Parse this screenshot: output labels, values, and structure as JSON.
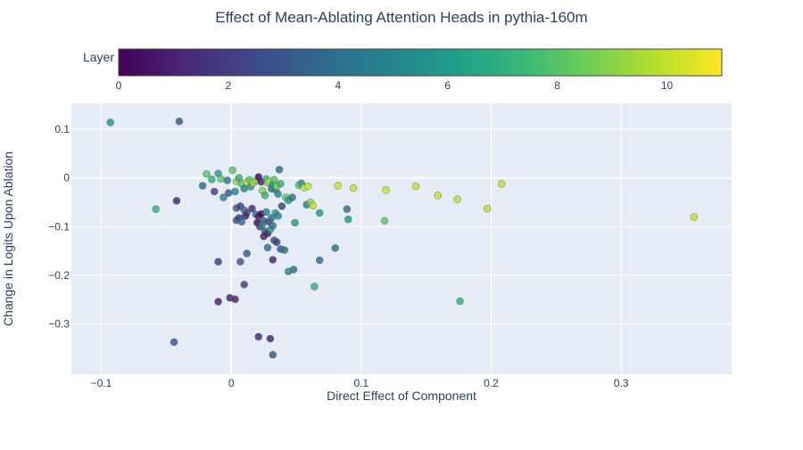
{
  "chart_data": {
    "type": "scatter",
    "title": "Effect of Mean-Ablating Attention Heads in pythia-160m",
    "xlabel": "Direct Effect of Component",
    "ylabel": "Change in Logits Upon Ablation",
    "xlim": [
      -0.123,
      0.385
    ],
    "ylim": [
      -0.403,
      0.153
    ],
    "xticks": [
      -0.1,
      0,
      0.1,
      0.2,
      0.3
    ],
    "xtick_labels": [
      "−0.1",
      "0",
      "0.1",
      "0.2",
      "0.3"
    ],
    "yticks": [
      0.1,
      0,
      -0.1,
      -0.2,
      -0.3
    ],
    "ytick_labels": [
      "0.1",
      "0",
      "−0.1",
      "−0.2",
      "−0.3"
    ],
    "grid": true,
    "colorbar": {
      "title": "Layer",
      "min": 0,
      "max": 11,
      "ticks": [
        0,
        2,
        4,
        6,
        8,
        10
      ],
      "colorscale": "Viridis",
      "placement": "top-horizontal"
    },
    "points": [
      {
        "x": -0.093,
        "y": 0.114,
        "layer": 6
      },
      {
        "x": -0.04,
        "y": 0.116,
        "layer": 3
      },
      {
        "x": -0.022,
        "y": -0.016,
        "layer": 4
      },
      {
        "x": -0.019,
        "y": 0.008,
        "layer": 8
      },
      {
        "x": -0.015,
        "y": -0.003,
        "layer": 7
      },
      {
        "x": -0.013,
        "y": -0.028,
        "layer": 2
      },
      {
        "x": -0.01,
        "y": 0.009,
        "layer": 6
      },
      {
        "x": -0.008,
        "y": -0.002,
        "layer": 8
      },
      {
        "x": -0.006,
        "y": -0.04,
        "layer": 5
      },
      {
        "x": -0.003,
        "y": -0.005,
        "layer": 4
      },
      {
        "x": -0.002,
        "y": -0.031,
        "layer": 3
      },
      {
        "x": 0.001,
        "y": 0.016,
        "layer": 8
      },
      {
        "x": 0.003,
        "y": -0.028,
        "layer": 5
      },
      {
        "x": 0.004,
        "y": -0.007,
        "layer": 9
      },
      {
        "x": 0.006,
        "y": 0.0,
        "layer": 7
      },
      {
        "x": 0.008,
        "y": -0.012,
        "layer": 8
      },
      {
        "x": 0.01,
        "y": -0.022,
        "layer": 5
      },
      {
        "x": 0.012,
        "y": -0.008,
        "layer": 10
      },
      {
        "x": 0.014,
        "y": -0.004,
        "layer": 8
      },
      {
        "x": 0.015,
        "y": -0.018,
        "layer": 6
      },
      {
        "x": 0.017,
        "y": -0.01,
        "layer": 10
      },
      {
        "x": 0.019,
        "y": -0.006,
        "layer": 9
      },
      {
        "x": 0.021,
        "y": 0.002,
        "layer": 0
      },
      {
        "x": 0.023,
        "y": -0.008,
        "layer": 1
      },
      {
        "x": 0.024,
        "y": -0.026,
        "layer": 9
      },
      {
        "x": 0.026,
        "y": -0.036,
        "layer": 7
      },
      {
        "x": 0.027,
        "y": -0.002,
        "layer": 7
      },
      {
        "x": 0.028,
        "y": -0.01,
        "layer": 9
      },
      {
        "x": 0.03,
        "y": -0.008,
        "layer": 10
      },
      {
        "x": 0.031,
        "y": -0.022,
        "layer": 4
      },
      {
        "x": 0.032,
        "y": -0.013,
        "layer": 6
      },
      {
        "x": 0.033,
        "y": -0.004,
        "layer": 8
      },
      {
        "x": 0.034,
        "y": -0.024,
        "layer": 5
      },
      {
        "x": 0.035,
        "y": -0.017,
        "layer": 9
      },
      {
        "x": 0.036,
        "y": -0.033,
        "layer": 5
      },
      {
        "x": 0.037,
        "y": 0.017,
        "layer": 4
      },
      {
        "x": 0.038,
        "y": -0.012,
        "layer": 7
      },
      {
        "x": 0.039,
        "y": -0.058,
        "layer": 2
      },
      {
        "x": 0.042,
        "y": -0.04,
        "layer": 8
      },
      {
        "x": 0.044,
        "y": -0.046,
        "layer": 6
      },
      {
        "x": 0.047,
        "y": -0.04,
        "layer": 4
      },
      {
        "x": 0.052,
        "y": -0.015,
        "layer": 8
      },
      {
        "x": 0.054,
        "y": -0.011,
        "layer": 6
      },
      {
        "x": 0.056,
        "y": -0.02,
        "layer": 10
      },
      {
        "x": 0.058,
        "y": -0.055,
        "layer": 5
      },
      {
        "x": 0.059,
        "y": -0.017,
        "layer": 10
      },
      {
        "x": 0.061,
        "y": -0.05,
        "layer": 9
      },
      {
        "x": 0.063,
        "y": -0.057,
        "layer": 10
      },
      {
        "x": 0.068,
        "y": -0.072,
        "layer": 6
      },
      {
        "x": 0.082,
        "y": -0.016,
        "layer": 10
      },
      {
        "x": 0.089,
        "y": -0.064,
        "layer": 4
      },
      {
        "x": 0.09,
        "y": -0.085,
        "layer": 6
      },
      {
        "x": 0.094,
        "y": -0.021,
        "layer": 10
      },
      {
        "x": 0.119,
        "y": -0.025,
        "layer": 10
      },
      {
        "x": 0.118,
        "y": -0.088,
        "layer": 8
      },
      {
        "x": 0.142,
        "y": -0.017,
        "layer": 10
      },
      {
        "x": 0.159,
        "y": -0.036,
        "layer": 10
      },
      {
        "x": 0.174,
        "y": -0.044,
        "layer": 10
      },
      {
        "x": 0.176,
        "y": -0.253,
        "layer": 7
      },
      {
        "x": 0.197,
        "y": -0.063,
        "layer": 10
      },
      {
        "x": 0.208,
        "y": -0.012,
        "layer": 10
      },
      {
        "x": 0.356,
        "y": -0.08,
        "layer": 10
      },
      {
        "x": -0.058,
        "y": -0.064,
        "layer": 7
      },
      {
        "x": -0.042,
        "y": -0.047,
        "layer": 1
      },
      {
        "x": 0.004,
        "y": -0.062,
        "layer": 3
      },
      {
        "x": 0.007,
        "y": -0.058,
        "layer": 2
      },
      {
        "x": 0.01,
        "y": -0.066,
        "layer": 4
      },
      {
        "x": 0.012,
        "y": -0.072,
        "layer": 3
      },
      {
        "x": 0.016,
        "y": -0.063,
        "layer": 1
      },
      {
        "x": 0.019,
        "y": -0.075,
        "layer": 4
      },
      {
        "x": 0.021,
        "y": -0.079,
        "layer": 1
      },
      {
        "x": 0.023,
        "y": -0.074,
        "layer": 0
      },
      {
        "x": 0.025,
        "y": -0.088,
        "layer": 3
      },
      {
        "x": 0.027,
        "y": -0.07,
        "layer": 5
      },
      {
        "x": 0.029,
        "y": -0.09,
        "layer": 2
      },
      {
        "x": 0.031,
        "y": -0.082,
        "layer": 4
      },
      {
        "x": 0.034,
        "y": -0.072,
        "layer": 6
      },
      {
        "x": 0.036,
        "y": -0.078,
        "layer": 5
      },
      {
        "x": 0.004,
        "y": -0.087,
        "layer": 3
      },
      {
        "x": 0.006,
        "y": -0.082,
        "layer": 2
      },
      {
        "x": 0.008,
        "y": -0.09,
        "layer": 4
      },
      {
        "x": 0.011,
        "y": -0.078,
        "layer": 1
      },
      {
        "x": 0.02,
        "y": -0.092,
        "layer": 0
      },
      {
        "x": 0.022,
        "y": -0.1,
        "layer": 2
      },
      {
        "x": 0.024,
        "y": -0.096,
        "layer": 5
      },
      {
        "x": 0.026,
        "y": -0.11,
        "layer": 3
      },
      {
        "x": 0.028,
        "y": -0.114,
        "layer": 1
      },
      {
        "x": 0.03,
        "y": -0.106,
        "layer": 6
      },
      {
        "x": 0.032,
        "y": -0.098,
        "layer": 4
      },
      {
        "x": 0.033,
        "y": -0.128,
        "layer": 3
      },
      {
        "x": 0.035,
        "y": -0.132,
        "layer": 2
      },
      {
        "x": 0.038,
        "y": -0.146,
        "layer": 3
      },
      {
        "x": 0.041,
        "y": -0.148,
        "layer": 4
      },
      {
        "x": 0.049,
        "y": -0.092,
        "layer": 6
      },
      {
        "x": 0.025,
        "y": -0.12,
        "layer": 1
      },
      {
        "x": 0.028,
        "y": -0.143,
        "layer": 4
      },
      {
        "x": 0.08,
        "y": -0.144,
        "layer": 4
      },
      {
        "x": 0.012,
        "y": -0.155,
        "layer": 3
      },
      {
        "x": 0.032,
        "y": -0.168,
        "layer": 1
      },
      {
        "x": 0.048,
        "y": -0.188,
        "layer": 4
      },
      {
        "x": 0.068,
        "y": -0.169,
        "layer": 4
      },
      {
        "x": -0.01,
        "y": -0.172,
        "layer": 2
      },
      {
        "x": 0.007,
        "y": -0.172,
        "layer": 3
      },
      {
        "x": 0.044,
        "y": -0.192,
        "layer": 5
      },
      {
        "x": 0.01,
        "y": -0.219,
        "layer": 2
      },
      {
        "x": 0.064,
        "y": -0.223,
        "layer": 7
      },
      {
        "x": -0.001,
        "y": -0.246,
        "layer": 1
      },
      {
        "x": 0.003,
        "y": -0.249,
        "layer": 1
      },
      {
        "x": -0.01,
        "y": -0.254,
        "layer": 1
      },
      {
        "x": 0.021,
        "y": -0.326,
        "layer": 1
      },
      {
        "x": 0.03,
        "y": -0.33,
        "layer": 1
      },
      {
        "x": -0.044,
        "y": -0.337,
        "layer": 3
      },
      {
        "x": 0.032,
        "y": -0.363,
        "layer": 3
      }
    ]
  }
}
